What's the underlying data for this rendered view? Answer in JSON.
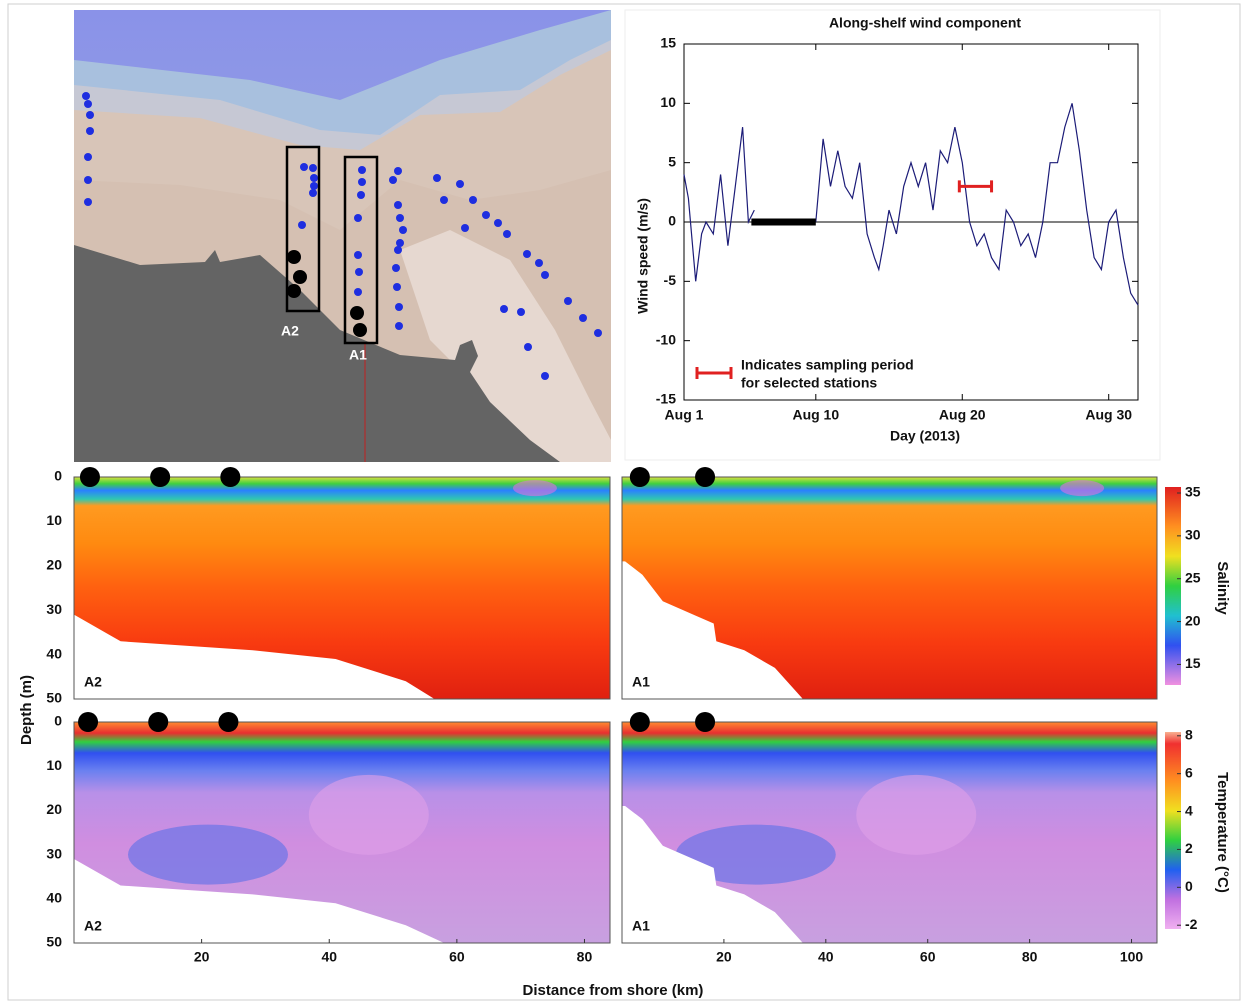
{
  "chart_data": [
    {
      "type": "map",
      "labels": [
        "A2",
        "A1"
      ]
    },
    {
      "type": "line",
      "title": "Along-shelf wind component",
      "xlabel": "Day (2013)",
      "ylabel": "Wind speed (m/s)",
      "x": [
        1,
        1.3,
        1.8,
        2.2,
        2.5,
        3,
        3.5,
        4,
        4.5,
        5,
        5.4,
        5.8,
        8,
        10,
        10.5,
        11,
        11.5,
        12,
        12.5,
        13,
        13.5,
        14,
        14.3,
        14.6,
        15,
        15.5,
        16,
        16.5,
        17,
        17.5,
        18,
        18.5,
        19,
        19.5,
        20,
        20.5,
        21,
        21.5,
        22,
        22.5,
        23,
        23.5,
        24,
        24.5,
        25,
        25.5,
        26,
        26.5,
        27,
        27.5,
        28,
        28.5,
        29,
        29.5,
        30,
        30.5,
        31,
        31.5,
        32
      ],
      "values": [
        4,
        2,
        -5,
        -1,
        0,
        -1,
        4,
        -2,
        3,
        8,
        0,
        1,
        null,
        0,
        7,
        3,
        6,
        3,
        2,
        5,
        -1,
        -3,
        -4,
        -2,
        1,
        -1,
        3,
        5,
        3,
        5,
        1,
        6,
        5,
        8,
        5,
        0,
        -2,
        -1,
        -3,
        -4,
        1,
        0,
        -2,
        -1,
        -3,
        0,
        5,
        5,
        8,
        10,
        6,
        1,
        -3,
        -4,
        0,
        1,
        -3,
        -6,
        -7
      ],
      "color": "#1c1c78",
      "xlim": [
        1,
        32
      ],
      "xticks": [
        {
          "value": 1,
          "label": "Aug 1"
        },
        {
          "value": 10,
          "label": "Aug 10"
        },
        {
          "value": 20,
          "label": "Aug 20"
        },
        {
          "value": 30,
          "label": "Aug 30"
        }
      ],
      "ylim": [
        -15,
        15
      ],
      "yticks": [
        15,
        10,
        5,
        0,
        -5,
        -10,
        -15
      ],
      "hline": 0,
      "gap_period": {
        "x": [
          5.6,
          10
        ],
        "value": 0,
        "color": "#000000"
      },
      "sampling_period": {
        "x": [
          19.8,
          22
        ],
        "value": 3,
        "color": "#e02020"
      },
      "legend_text": [
        "Indicates sampling period",
        "for selected stations"
      ]
    },
    {
      "type": "section",
      "label": "A2",
      "xlim": [
        0,
        84
      ],
      "ylim": [
        0,
        50
      ],
      "yticks": [
        0,
        10,
        20,
        30,
        40,
        50
      ],
      "stations": [
        2.5,
        13.5,
        24.5
      ],
      "bottom": {
        "x": [
          0,
          7.3,
          28,
          41,
          52,
          56.5
        ],
        "depth": [
          31,
          37,
          39,
          41,
          46,
          50
        ]
      }
    },
    {
      "type": "section",
      "label": "A1",
      "xlim": [
        0,
        105
      ],
      "ylim": [
        0,
        50
      ],
      "stations": [
        3.5,
        16.3
      ],
      "bottom": {
        "x": [
          0.6,
          4,
          8,
          14,
          18,
          18.5,
          24,
          30,
          35.5
        ],
        "depth": [
          19,
          22,
          28,
          31,
          33,
          37,
          39,
          43,
          50
        ]
      },
      "colorbar": {
        "label": "Salinity",
        "lim": [
          12.6,
          35.7
        ],
        "ticks": [
          35,
          30,
          25,
          20,
          15
        ]
      }
    },
    {
      "type": "section",
      "label": "A2",
      "xlim": [
        0,
        84
      ],
      "ylim": [
        0,
        50
      ],
      "yticks": [
        0,
        10,
        20,
        30,
        40,
        50
      ],
      "xticks": [
        20,
        40,
        60,
        80
      ],
      "stations": [
        2.2,
        13.2,
        24.2
      ],
      "bottom": {
        "x": [
          0,
          7.3,
          28,
          41,
          52,
          58
        ],
        "depth": [
          31,
          37,
          39,
          41,
          46,
          50
        ]
      }
    },
    {
      "type": "section",
      "label": "A1",
      "xlim": [
        0,
        105
      ],
      "ylim": [
        0,
        50
      ],
      "xticks": [
        20,
        40,
        60,
        80,
        100
      ],
      "stations": [
        3.5,
        16.3
      ],
      "bottom": {
        "x": [
          0.6,
          4,
          8,
          14,
          18,
          18.5,
          24,
          30,
          35.5
        ],
        "depth": [
          19,
          22,
          28,
          31,
          33,
          37,
          39,
          43,
          50
        ]
      },
      "colorbar": {
        "label": "Temperature (°C)",
        "lim": [
          -2.2,
          8.2
        ],
        "ticks": [
          8,
          6,
          4,
          2,
          0,
          -2
        ]
      }
    }
  ],
  "figure": {
    "ylabel": "Depth (m)",
    "xlabel": "Distance from shore (km)"
  }
}
